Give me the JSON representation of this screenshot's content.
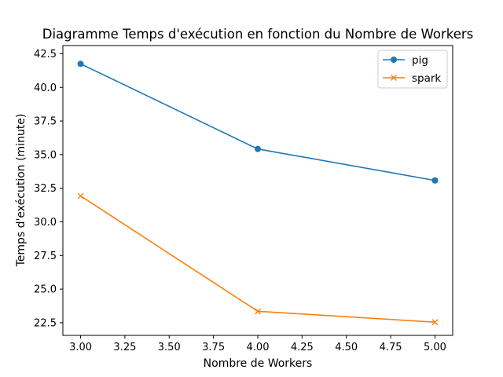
{
  "chart_data": {
    "type": "line",
    "title": "Diagramme Temps d'exécution en fonction du Nombre de Workers",
    "xlabel": "Nombre de Workers",
    "ylabel": "Temps d'exécution (minute)",
    "x": [
      3.0,
      4.0,
      5.0
    ],
    "xlim": [
      2.9,
      5.1
    ],
    "ylim": [
      21.56,
      43.11
    ],
    "xticks": [
      "3.00",
      "3.25",
      "3.50",
      "3.75",
      "4.00",
      "4.25",
      "4.50",
      "4.75",
      "5.00"
    ],
    "xtick_values": [
      3.0,
      3.25,
      3.5,
      3.75,
      4.0,
      4.25,
      4.5,
      4.75,
      5.0
    ],
    "yticks": [
      "22.5",
      "25.0",
      "27.5",
      "30.0",
      "32.5",
      "35.0",
      "37.5",
      "40.0",
      "42.5"
    ],
    "ytick_values": [
      22.5,
      25.0,
      27.5,
      30.0,
      32.5,
      35.0,
      37.5,
      40.0,
      42.5
    ],
    "grid": false,
    "legend_position": "top-right",
    "series": [
      {
        "name": "pig",
        "values": [
          41.75,
          35.42,
          33.08
        ],
        "color": "#1f77b4",
        "marker": "circle"
      },
      {
        "name": "spark",
        "values": [
          31.93,
          23.35,
          22.54
        ],
        "color": "#ff7f0e",
        "marker": "x"
      }
    ]
  }
}
